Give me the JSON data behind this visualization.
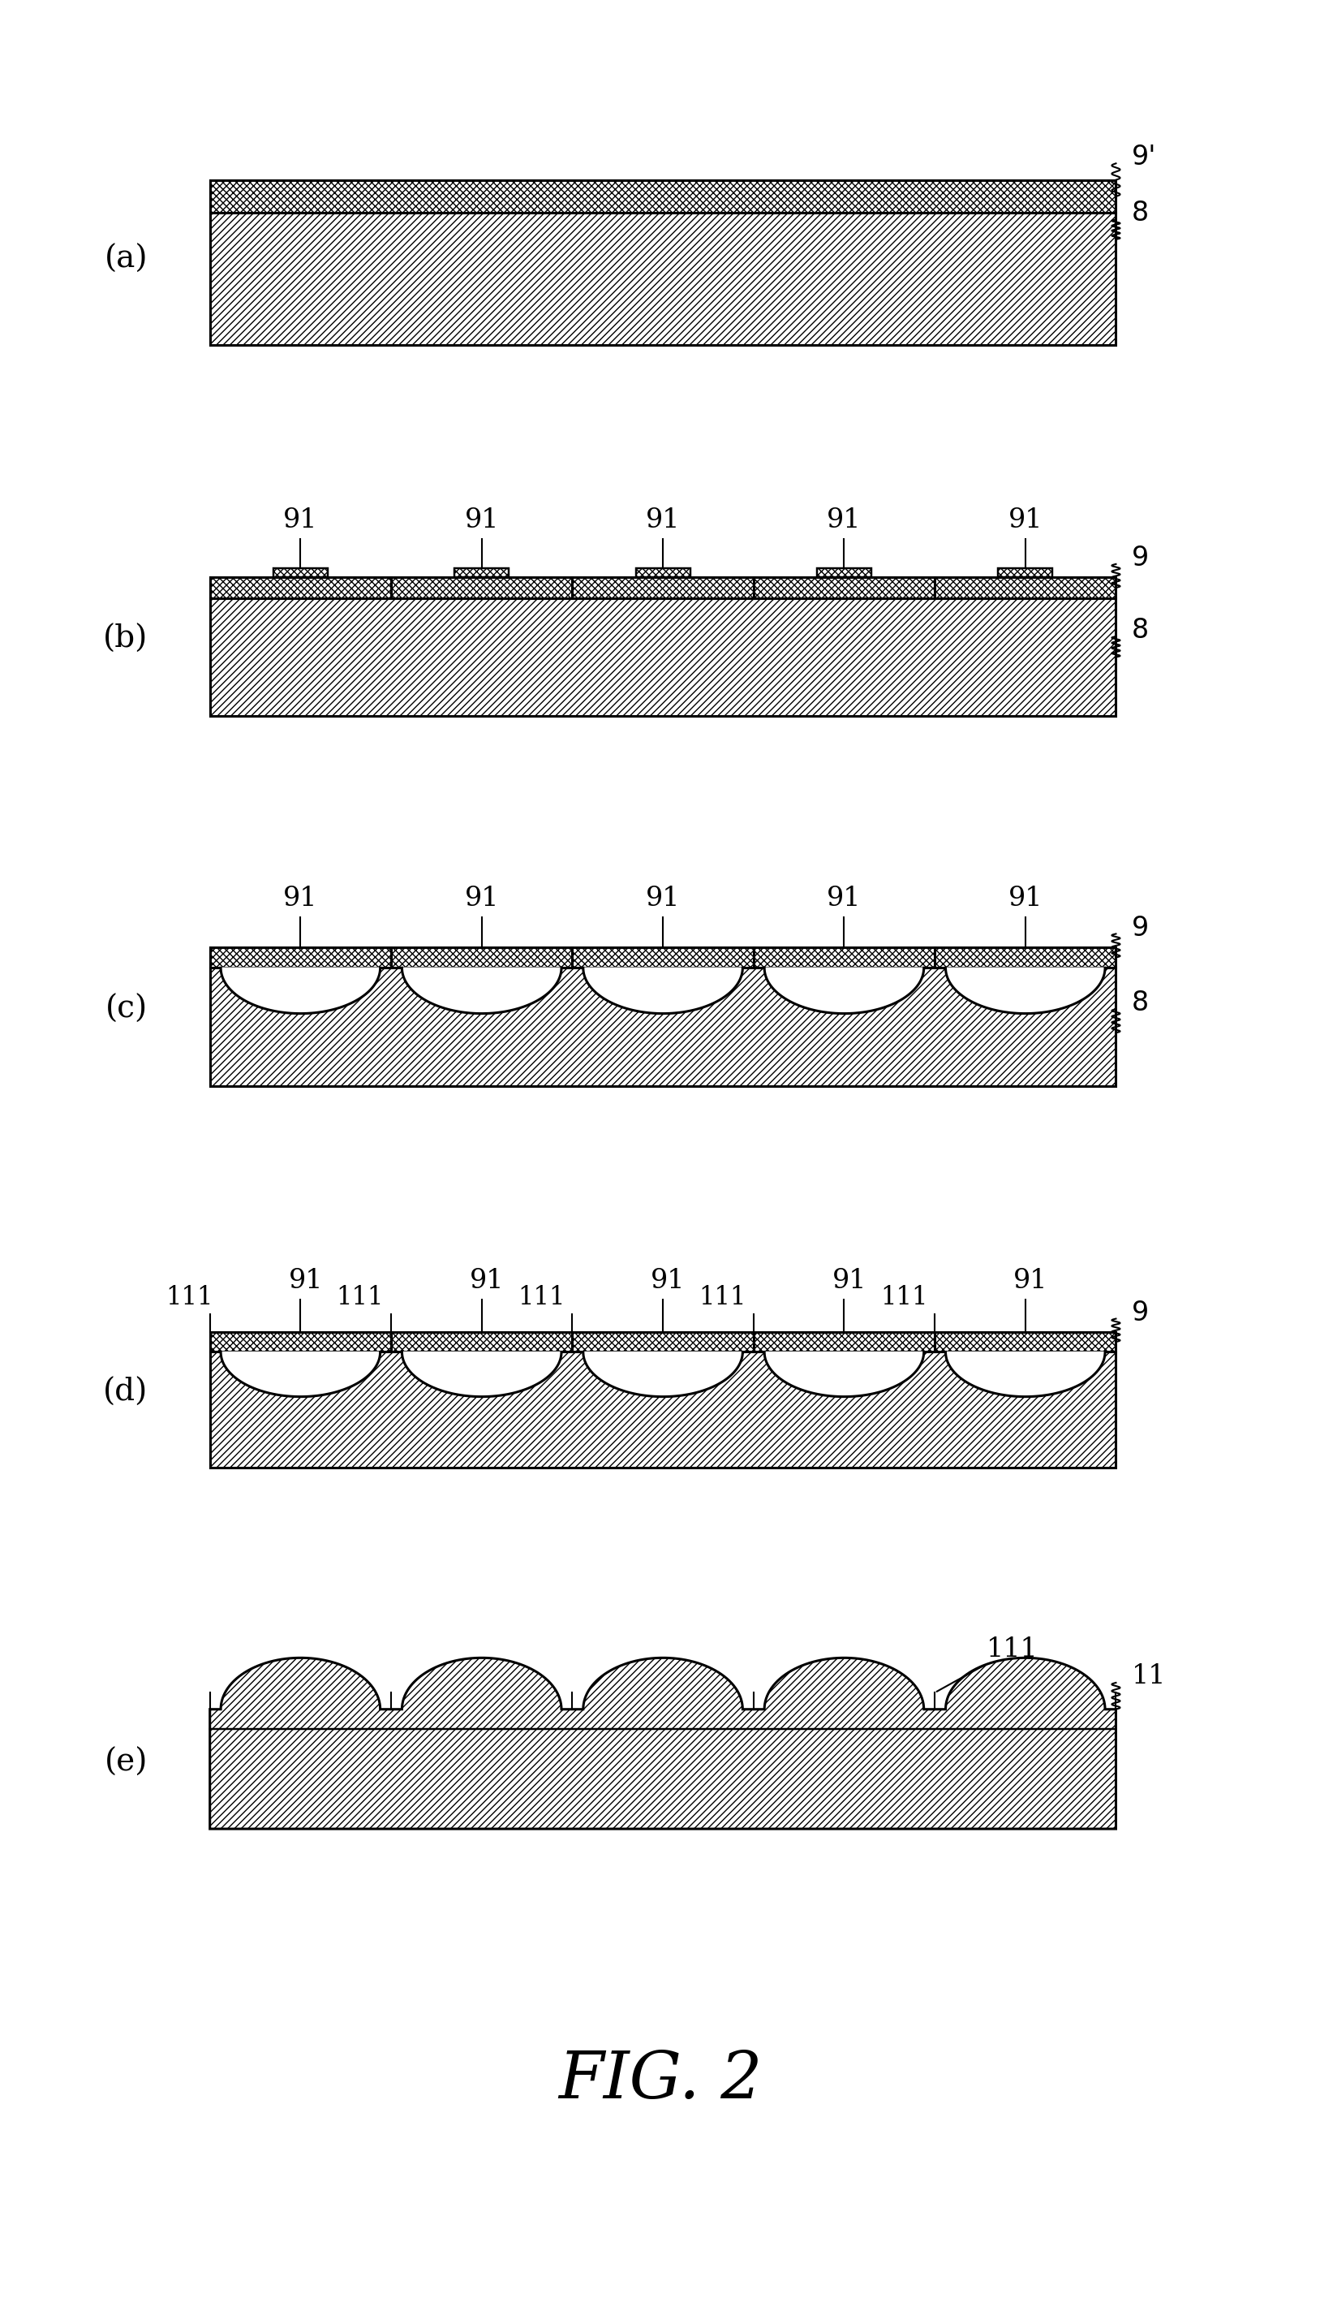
{
  "fig_width": 16.27,
  "fig_height": 28.47,
  "bg_color": "#ffffff",
  "panels": [
    "(a)",
    "(b)",
    "(c)",
    "(d)",
    "(e)"
  ],
  "title": "FIG. 2",
  "title_fontsize": 58,
  "panel_label_fontsize": 28,
  "annotation_fontsize": 24,
  "lw": 2.2,
  "n_lenses": 5,
  "hatch_lw": 1.0
}
